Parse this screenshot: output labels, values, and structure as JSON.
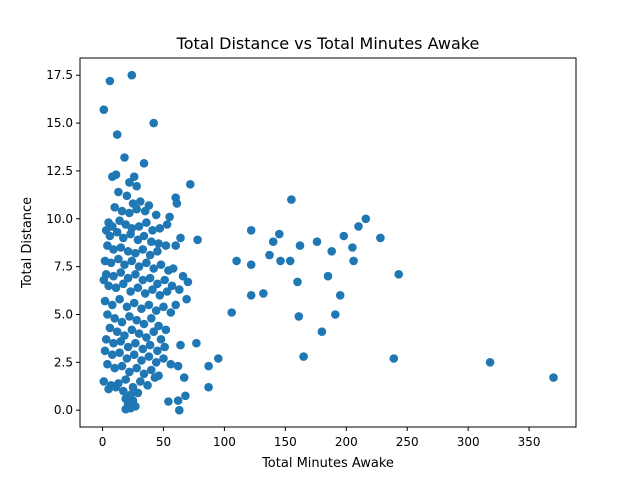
{
  "chart_data": {
    "type": "scatter",
    "title": "Total Distance vs Total Minutes Awake",
    "xlabel": "Total Minutes Awake",
    "ylabel": "Total Distance",
    "xlim": [
      -18.5,
      388.5
    ],
    "ylim": [
      -0.88,
      18.4
    ],
    "xticks": [
      0,
      50,
      100,
      150,
      200,
      250,
      300,
      350
    ],
    "xtick_labels": [
      "0",
      "50",
      "100",
      "150",
      "200",
      "250",
      "300",
      "350"
    ],
    "yticks": [
      0.0,
      2.5,
      5.0,
      7.5,
      10.0,
      12.5,
      15.0,
      17.5
    ],
    "ytick_labels": [
      "0.0",
      "2.5",
      "5.0",
      "7.5",
      "10.0",
      "12.5",
      "15.0",
      "17.5"
    ],
    "grid": false,
    "point_color": "#1f77b4",
    "points": [
      [
        1,
        15.7
      ],
      [
        6,
        17.2
      ],
      [
        24,
        17.5
      ],
      [
        12,
        14.4
      ],
      [
        42,
        15.0
      ],
      [
        18,
        13.2
      ],
      [
        34,
        12.9
      ],
      [
        8,
        12.2
      ],
      [
        11,
        12.3
      ],
      [
        26,
        12.2
      ],
      [
        22,
        11.9
      ],
      [
        28,
        11.7
      ],
      [
        13,
        11.4
      ],
      [
        20,
        11.2
      ],
      [
        60,
        11.1
      ],
      [
        72,
        11.8
      ],
      [
        155,
        11.0
      ],
      [
        25,
        10.8
      ],
      [
        31,
        10.9
      ],
      [
        38,
        10.7
      ],
      [
        10,
        10.6
      ],
      [
        16,
        10.4
      ],
      [
        22,
        10.3
      ],
      [
        28,
        10.5
      ],
      [
        35,
        10.4
      ],
      [
        44,
        10.2
      ],
      [
        55,
        10.1
      ],
      [
        61,
        10.8
      ],
      [
        5,
        9.8
      ],
      [
        8,
        9.6
      ],
      [
        14,
        9.9
      ],
      [
        19,
        9.7
      ],
      [
        24,
        9.5
      ],
      [
        30,
        9.6
      ],
      [
        36,
        9.8
      ],
      [
        41,
        9.4
      ],
      [
        47,
        9.5
      ],
      [
        53,
        9.7
      ],
      [
        3,
        9.4
      ],
      [
        6,
        9.1
      ],
      [
        12,
        9.3
      ],
      [
        17,
        9.0
      ],
      [
        23,
        9.2
      ],
      [
        29,
        8.9
      ],
      [
        34,
        9.1
      ],
      [
        40,
        8.8
      ],
      [
        46,
        8.7
      ],
      [
        52,
        8.6
      ],
      [
        60,
        8.6
      ],
      [
        64,
        9.0
      ],
      [
        78,
        8.9
      ],
      [
        122,
        9.4
      ],
      [
        145,
        9.2
      ],
      [
        210,
        9.6
      ],
      [
        216,
        10.0
      ],
      [
        228,
        9.0
      ],
      [
        198,
        9.1
      ],
      [
        140,
        8.8
      ],
      [
        162,
        8.6
      ],
      [
        176,
        8.8
      ],
      [
        205,
        8.5
      ],
      [
        188,
        8.3
      ],
      [
        4,
        8.6
      ],
      [
        9,
        8.4
      ],
      [
        15,
        8.5
      ],
      [
        21,
        8.3
      ],
      [
        27,
        8.2
      ],
      [
        33,
        8.4
      ],
      [
        39,
        8.1
      ],
      [
        45,
        8.3
      ],
      [
        2,
        7.8
      ],
      [
        7,
        7.7
      ],
      [
        13,
        7.9
      ],
      [
        18,
        7.6
      ],
      [
        24,
        7.8
      ],
      [
        30,
        7.5
      ],
      [
        36,
        7.7
      ],
      [
        42,
        7.4
      ],
      [
        48,
        7.6
      ],
      [
        54,
        7.3
      ],
      [
        58,
        7.4
      ],
      [
        66,
        7.0
      ],
      [
        70,
        6.7
      ],
      [
        110,
        7.8
      ],
      [
        122,
        7.6
      ],
      [
        137,
        8.1
      ],
      [
        146,
        7.8
      ],
      [
        154,
        7.8
      ],
      [
        206,
        7.8
      ],
      [
        243,
        7.1
      ],
      [
        185,
        7.0
      ],
      [
        160,
        6.7
      ],
      [
        3,
        7.1
      ],
      [
        9,
        7.0
      ],
      [
        15,
        7.2
      ],
      [
        21,
        6.9
      ],
      [
        27,
        7.1
      ],
      [
        33,
        6.8
      ],
      [
        39,
        6.9
      ],
      [
        45,
        6.6
      ],
      [
        51,
        6.8
      ],
      [
        57,
        6.5
      ],
      [
        63,
        6.3
      ],
      [
        1,
        6.8
      ],
      [
        5,
        6.5
      ],
      [
        11,
        6.4
      ],
      [
        17,
        6.6
      ],
      [
        23,
        6.2
      ],
      [
        29,
        6.4
      ],
      [
        35,
        6.1
      ],
      [
        41,
        6.3
      ],
      [
        47,
        6.0
      ],
      [
        53,
        6.2
      ],
      [
        69,
        5.8
      ],
      [
        122,
        6.0
      ],
      [
        132,
        6.1
      ],
      [
        195,
        6.0
      ],
      [
        2,
        5.7
      ],
      [
        8,
        5.5
      ],
      [
        14,
        5.8
      ],
      [
        20,
        5.4
      ],
      [
        26,
        5.6
      ],
      [
        32,
        5.3
      ],
      [
        38,
        5.5
      ],
      [
        44,
        5.2
      ],
      [
        50,
        5.4
      ],
      [
        56,
        5.1
      ],
      [
        60,
        5.5
      ],
      [
        106,
        5.1
      ],
      [
        161,
        4.9
      ],
      [
        191,
        5.0
      ],
      [
        4,
        5.0
      ],
      [
        10,
        4.8
      ],
      [
        16,
        4.6
      ],
      [
        22,
        4.9
      ],
      [
        28,
        4.7
      ],
      [
        34,
        4.5
      ],
      [
        40,
        4.8
      ],
      [
        46,
        4.4
      ],
      [
        52,
        4.2
      ],
      [
        180,
        4.1
      ],
      [
        6,
        4.3
      ],
      [
        12,
        4.1
      ],
      [
        18,
        3.9
      ],
      [
        24,
        4.2
      ],
      [
        30,
        4.0
      ],
      [
        36,
        3.8
      ],
      [
        42,
        4.1
      ],
      [
        48,
        3.7
      ],
      [
        3,
        3.7
      ],
      [
        9,
        3.5
      ],
      [
        15,
        3.6
      ],
      [
        21,
        3.3
      ],
      [
        27,
        3.5
      ],
      [
        33,
        3.2
      ],
      [
        39,
        3.4
      ],
      [
        45,
        3.1
      ],
      [
        51,
        3.3
      ],
      [
        64,
        3.4
      ],
      [
        77,
        3.5
      ],
      [
        2,
        3.1
      ],
      [
        8,
        2.9
      ],
      [
        14,
        3.0
      ],
      [
        20,
        2.7
      ],
      [
        26,
        2.9
      ],
      [
        32,
        2.6
      ],
      [
        38,
        2.8
      ],
      [
        44,
        2.5
      ],
      [
        50,
        2.7
      ],
      [
        56,
        2.4
      ],
      [
        62,
        2.3
      ],
      [
        87,
        2.3
      ],
      [
        95,
        2.7
      ],
      [
        165,
        2.8
      ],
      [
        239,
        2.7
      ],
      [
        318,
        2.5
      ],
      [
        4,
        2.4
      ],
      [
        10,
        2.2
      ],
      [
        16,
        2.3
      ],
      [
        22,
        2.0
      ],
      [
        28,
        2.2
      ],
      [
        34,
        1.9
      ],
      [
        40,
        2.1
      ],
      [
        46,
        1.8
      ],
      [
        1,
        1.5
      ],
      [
        7,
        1.3
      ],
      [
        13,
        1.4
      ],
      [
        19,
        1.6
      ],
      [
        25,
        1.2
      ],
      [
        31,
        1.5
      ],
      [
        37,
        1.3
      ],
      [
        43,
        1.7
      ],
      [
        67,
        1.7
      ],
      [
        87,
        1.2
      ],
      [
        370,
        1.7
      ],
      [
        5,
        1.1
      ],
      [
        11,
        1.2
      ],
      [
        17,
        1.0
      ],
      [
        23,
        0.8
      ],
      [
        29,
        0.9
      ],
      [
        19,
        0.6
      ],
      [
        25,
        0.5
      ],
      [
        21,
        0.3
      ],
      [
        27,
        0.2
      ],
      [
        23,
        0.1
      ],
      [
        19,
        0.05
      ],
      [
        54,
        0.45
      ],
      [
        62,
        0.5
      ],
      [
        68,
        0.75
      ],
      [
        63,
        0.0
      ]
    ]
  }
}
